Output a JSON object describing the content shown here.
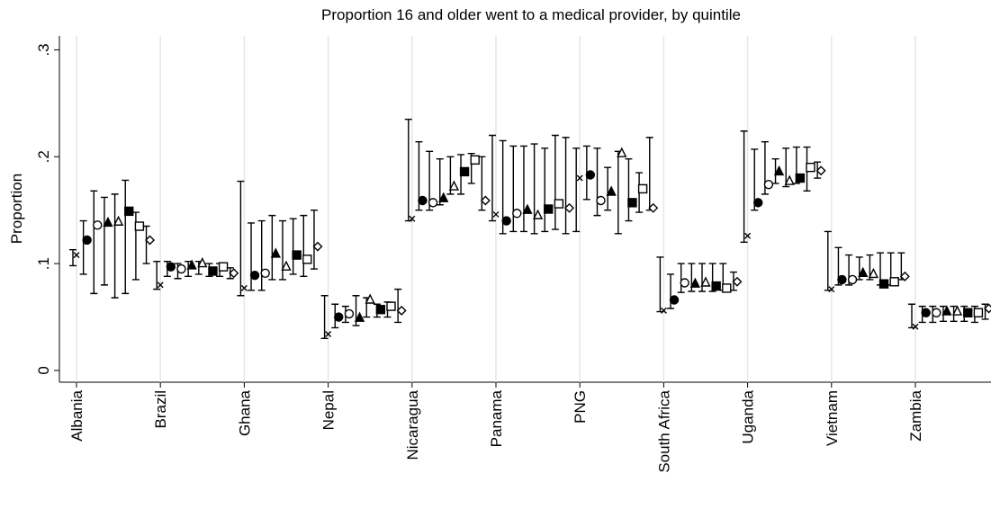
{
  "chart_data": {
    "type": "dot_ci",
    "title": "Proportion 16 and older went to a medical provider, by quintile",
    "y_label": "Proportion",
    "categories": [
      "Albania",
      "Brazil",
      "Ghana",
      "Nepal",
      "Nicaragua",
      "Panama",
      "PNG",
      "South Africa",
      "Uganda",
      "Vietnam",
      "Zambia"
    ],
    "ylim": [
      -0.011,
      0.313
    ],
    "yticks": [
      0,
      {
        "value": 0.1,
        "label": ".1"
      },
      {
        "value": 0.2,
        "label": ".2"
      },
      {
        "value": 0.3,
        "label": ".3"
      }
    ],
    "grid": true,
    "color": "#000000",
    "series": [
      {
        "marker": "x",
        "values": [
          0.108,
          0.08,
          0.077,
          0.034,
          0.142,
          0.146,
          0.18,
          0.056,
          0.126,
          0.076,
          0.041
        ],
        "lower": [
          0.098,
          0.076,
          0.07,
          0.03,
          0.14,
          0.14,
          0.13,
          0.055,
          0.12,
          0.075,
          0.04
        ],
        "upper": [
          0.113,
          0.102,
          0.177,
          0.07,
          0.235,
          0.22,
          0.208,
          0.106,
          0.224,
          0.13,
          0.062
        ]
      },
      {
        "marker": "filled-circle",
        "values": [
          0.122,
          0.097,
          0.089,
          0.05,
          0.159,
          0.14,
          0.183,
          0.066,
          0.157,
          0.085,
          0.054
        ],
        "lower": [
          0.09,
          0.088,
          0.075,
          0.04,
          0.15,
          0.128,
          0.16,
          0.058,
          0.15,
          0.08,
          0.045
        ],
        "upper": [
          0.14,
          0.102,
          0.138,
          0.062,
          0.214,
          0.215,
          0.21,
          0.09,
          0.207,
          0.115,
          0.06
        ]
      },
      {
        "marker": "hollow-circle",
        "values": [
          0.136,
          0.095,
          0.091,
          0.053,
          0.157,
          0.147,
          0.159,
          0.082,
          0.174,
          0.085,
          0.054
        ],
        "lower": [
          0.072,
          0.086,
          0.075,
          0.045,
          0.15,
          0.13,
          0.145,
          0.073,
          0.165,
          0.08,
          0.045
        ],
        "upper": [
          0.168,
          0.1,
          0.14,
          0.06,
          0.205,
          0.21,
          0.208,
          0.1,
          0.214,
          0.108,
          0.06
        ]
      },
      {
        "marker": "filled-triangle",
        "values": [
          0.138,
          0.098,
          0.109,
          0.049,
          0.161,
          0.15,
          0.167,
          0.081,
          0.186,
          0.091,
          0.055
        ],
        "lower": [
          0.08,
          0.088,
          0.085,
          0.042,
          0.155,
          0.13,
          0.15,
          0.074,
          0.175,
          0.085,
          0.046
        ],
        "upper": [
          0.162,
          0.102,
          0.145,
          0.07,
          0.198,
          0.21,
          0.19,
          0.1,
          0.198,
          0.106,
          0.06
        ]
      },
      {
        "marker": "hollow-triangle",
        "values": [
          0.139,
          0.1,
          0.097,
          0.066,
          0.172,
          0.145,
          0.203,
          0.082,
          0.177,
          0.09,
          0.055
        ],
        "lower": [
          0.068,
          0.09,
          0.085,
          0.05,
          0.165,
          0.128,
          0.128,
          0.074,
          0.172,
          0.085,
          0.046
        ],
        "upper": [
          0.165,
          0.102,
          0.14,
          0.068,
          0.2,
          0.212,
          0.205,
          0.1,
          0.208,
          0.108,
          0.06
        ]
      },
      {
        "marker": "filled-square",
        "values": [
          0.149,
          0.093,
          0.108,
          0.057,
          0.186,
          0.151,
          0.157,
          0.079,
          0.18,
          0.081,
          0.054
        ],
        "lower": [
          0.072,
          0.088,
          0.09,
          0.05,
          0.165,
          0.13,
          0.14,
          0.074,
          0.175,
          0.08,
          0.046
        ],
        "upper": [
          0.178,
          0.1,
          0.142,
          0.062,
          0.202,
          0.208,
          0.198,
          0.1,
          0.209,
          0.11,
          0.06
        ]
      },
      {
        "marker": "hollow-square",
        "values": [
          0.135,
          0.097,
          0.104,
          0.06,
          0.197,
          0.156,
          0.17,
          0.077,
          0.19,
          0.083,
          0.054
        ],
        "lower": [
          0.085,
          0.088,
          0.088,
          0.05,
          0.175,
          0.132,
          0.148,
          0.075,
          0.168,
          0.08,
          0.045
        ],
        "upper": [
          0.148,
          0.1,
          0.145,
          0.064,
          0.203,
          0.22,
          0.185,
          0.1,
          0.209,
          0.11,
          0.06
        ]
      },
      {
        "marker": "hollow-diamond",
        "values": [
          0.122,
          0.091,
          0.116,
          0.056,
          0.159,
          0.152,
          0.152,
          0.083,
          0.187,
          0.088,
          0.058
        ],
        "lower": [
          0.1,
          0.086,
          0.095,
          0.045,
          0.15,
          0.128,
          0.15,
          0.075,
          0.18,
          0.085,
          0.048
        ],
        "upper": [
          0.135,
          0.096,
          0.15,
          0.076,
          0.2,
          0.218,
          0.218,
          0.092,
          0.195,
          0.11,
          0.062
        ]
      }
    ]
  }
}
